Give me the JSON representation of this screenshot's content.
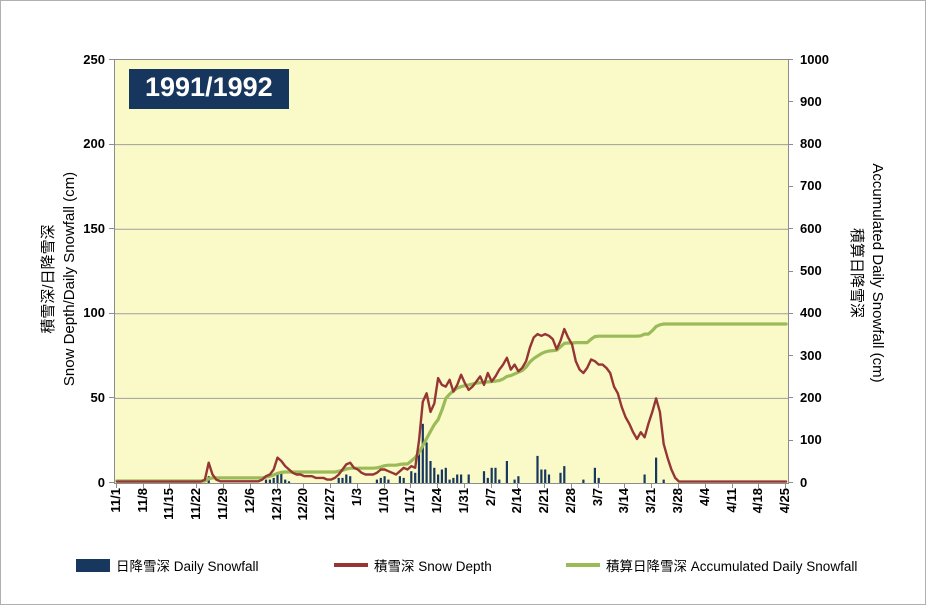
{
  "title": "1991/1992",
  "colors": {
    "plot_background": "#FAFAC8",
    "gridline": "#9e9e9e",
    "axis_line": "#8c8c8c",
    "title_box_background": "#17365D",
    "title_text": "#FFFFFF",
    "bar": "#17375E",
    "snow_depth_line": "#963634",
    "accumulated_line": "#9BBB59"
  },
  "legend": {
    "items": [
      {
        "label": "日降雪深 Daily Snowfall",
        "swatch": "bar",
        "color": "#17375E"
      },
      {
        "label": "積雪深 Snow Depth",
        "swatch": "line",
        "color": "#963634"
      },
      {
        "label": "積算日降雪深 Accumulated Daily Snowfall",
        "swatch": "line",
        "color": "#9BBB59"
      }
    ]
  },
  "chart_data": {
    "type": "bar+line combo, dual axis",
    "n_days": 176,
    "x_tick_interval_days": 7,
    "x_tick_labels": [
      "11/1",
      "11/8",
      "11/15",
      "11/22",
      "11/29",
      "12/6",
      "12/13",
      "12/20",
      "12/27",
      "1/3",
      "1/10",
      "1/17",
      "1/24",
      "1/31",
      "2/7",
      "2/14",
      "2/21",
      "2/28",
      "3/7",
      "3/14",
      "3/21",
      "3/28",
      "4/4",
      "4/11",
      "4/18",
      "4/25"
    ],
    "left_axis": {
      "title_zh": "積雪深/日降雪深",
      "title_en": "Snow Depth/Daily Snowfall (cm)",
      "min": 0,
      "max": 250,
      "ticks": [
        250,
        200,
        150,
        100,
        50,
        0
      ],
      "gridlines": [
        200,
        150,
        100,
        50
      ]
    },
    "right_axis": {
      "title_zh": "積算日降雪深",
      "title_en": "Accumulated Daily Snowfall (cm)",
      "min": 0,
      "max": 1000,
      "ticks": [
        1000,
        900,
        800,
        700,
        600,
        500,
        400,
        300,
        200,
        100,
        0
      ]
    },
    "series": [
      {
        "name": "日降雪深 Daily Snowfall",
        "type": "bar",
        "axis": "left",
        "color": "#17375E",
        "values": [
          0,
          0,
          0,
          0,
          0,
          0,
          0,
          0,
          0,
          0,
          0,
          0,
          0,
          0,
          0,
          0,
          0,
          0,
          0,
          0,
          0,
          0,
          0,
          0,
          4,
          0,
          0,
          0,
          0,
          0,
          0,
          0,
          0,
          0,
          0,
          0,
          0,
          0,
          0,
          2,
          2,
          3,
          5,
          6,
          2,
          1,
          0,
          0,
          0,
          0,
          0,
          0,
          0,
          0,
          0,
          0,
          0,
          0,
          3,
          3,
          5,
          4,
          0,
          0,
          0,
          0,
          0,
          0,
          2,
          3,
          4,
          2,
          0,
          0,
          4,
          3,
          0,
          7,
          6,
          18,
          35,
          24,
          13,
          9,
          5,
          8,
          9,
          2,
          3,
          5,
          5,
          0,
          5,
          0,
          0,
          0,
          7,
          3,
          9,
          9,
          2,
          0,
          13,
          0,
          2,
          4,
          0,
          0,
          0,
          0,
          16,
          8,
          8,
          5,
          0,
          0,
          6,
          10,
          0,
          0,
          0,
          0,
          2,
          0,
          0,
          9,
          3,
          0,
          0,
          0,
          0,
          0,
          0,
          0,
          0,
          0,
          0,
          0,
          5,
          0,
          0,
          15,
          0,
          2,
          0,
          0,
          0,
          0,
          0,
          0,
          0,
          0,
          0,
          0,
          0,
          0,
          0,
          0,
          0,
          0,
          0,
          0,
          0,
          0,
          0,
          0,
          0,
          0,
          0,
          0,
          0,
          0,
          0,
          0,
          0,
          0
        ]
      },
      {
        "name": "積雪深 Snow Depth",
        "type": "line",
        "axis": "left",
        "color": "#963634",
        "values": [
          0,
          0,
          0,
          0,
          0,
          0,
          0,
          0,
          0,
          0,
          0,
          0,
          0,
          0,
          0,
          0,
          0,
          0,
          0,
          0,
          0,
          0,
          0,
          2,
          12,
          5,
          2,
          1,
          1,
          1,
          1,
          1,
          1,
          1,
          1,
          1,
          1,
          1,
          2,
          4,
          5,
          8,
          15,
          13,
          10,
          8,
          6,
          5,
          5,
          4,
          4,
          4,
          3,
          3,
          3,
          2,
          2,
          3,
          5,
          8,
          11,
          12,
          9,
          8,
          6,
          5,
          5,
          5,
          6,
          8,
          8,
          7,
          6,
          5,
          7,
          9,
          8,
          10,
          9,
          25,
          48,
          53,
          42,
          47,
          62,
          58,
          57,
          61,
          54,
          58,
          64,
          59,
          55,
          57,
          60,
          63,
          58,
          65,
          60,
          63,
          67,
          70,
          74,
          67,
          70,
          66,
          68,
          72,
          80,
          86,
          88,
          87,
          88,
          87,
          85,
          79,
          84,
          91,
          86,
          82,
          72,
          67,
          65,
          68,
          73,
          72,
          70,
          70,
          68,
          65,
          57,
          53,
          45,
          39,
          35,
          30,
          26,
          30,
          27,
          35,
          42,
          50,
          42,
          23,
          15,
          8,
          3,
          0,
          0,
          0,
          0,
          0,
          0,
          0,
          0,
          0,
          0,
          0,
          0,
          0,
          0,
          0,
          0,
          0,
          0,
          0,
          0,
          0,
          0,
          0,
          0,
          0,
          0,
          0,
          0,
          0
        ]
      },
      {
        "name": "積算日降雪深 Accumulated Daily Snowfall",
        "type": "line",
        "axis": "right",
        "color": "#9BBB59",
        "values": [
          0,
          0,
          0,
          0,
          0,
          0,
          0,
          0,
          0,
          0,
          0,
          0,
          0,
          0,
          0,
          0,
          0,
          0,
          0,
          0,
          0,
          0,
          0,
          0,
          10,
          12,
          12,
          12,
          12,
          12,
          12,
          12,
          12,
          12,
          12,
          12,
          12,
          12,
          12,
          14,
          16,
          19,
          23,
          25,
          26,
          26,
          26,
          26,
          26,
          26,
          26,
          26,
          26,
          26,
          26,
          26,
          26,
          26,
          28,
          30,
          33,
          35,
          35,
          35,
          35,
          35,
          35,
          35,
          36,
          38,
          41,
          42,
          42,
          42,
          44,
          45,
          45,
          52,
          60,
          72,
          88,
          105,
          122,
          138,
          150,
          172,
          200,
          210,
          218,
          224,
          228,
          230,
          232,
          234,
          236,
          237,
          238,
          239,
          240,
          241,
          242,
          246,
          252,
          254,
          258,
          262,
          266,
          274,
          286,
          294,
          300,
          306,
          310,
          312,
          313,
          314,
          322,
          330,
          331,
          331,
          332,
          332,
          332,
          332,
          340,
          346,
          347,
          347,
          347,
          347,
          347,
          347,
          347,
          347,
          347,
          347,
          347,
          348,
          352,
          352,
          360,
          370,
          374,
          376,
          376,
          376,
          376,
          376,
          376,
          376,
          376,
          376,
          376,
          376,
          376,
          376,
          376,
          376,
          376,
          376,
          376,
          376,
          376,
          376,
          376,
          376,
          376,
          376,
          376,
          376,
          376,
          376,
          376,
          376,
          376,
          376
        ]
      }
    ]
  }
}
